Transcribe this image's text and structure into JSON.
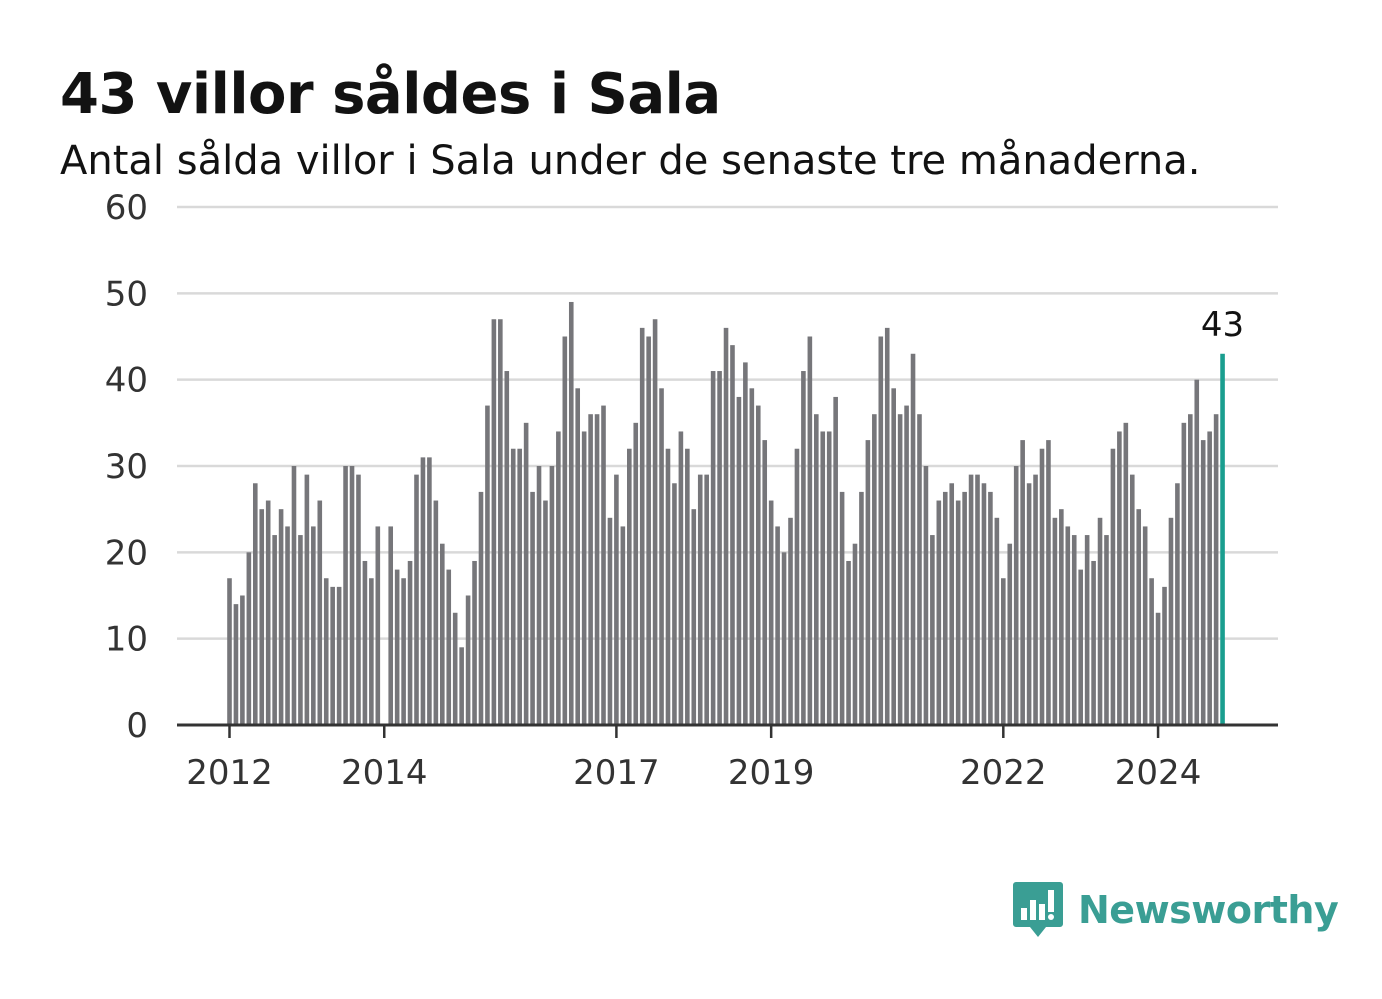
{
  "header": {
    "title": "43 villor såldes i Sala",
    "subtitle": "Antal sålda villor i Sala under de senaste tre månaderna."
  },
  "brand": {
    "name": "Newsworthy",
    "icon": "newsworthy-logo-icon",
    "color": "#3a9e94"
  },
  "colors": {
    "bar": "#76767a",
    "highlight": "#1a9e8f",
    "grid": "#d9d9d9",
    "axis": "#333333"
  },
  "chart_data": {
    "type": "bar",
    "title": "43 villor såldes i Sala",
    "subtitle": "Antal sålda villor i Sala under de senaste tre månaderna.",
    "xlabel": "",
    "ylabel": "",
    "ylim": [
      0,
      60
    ],
    "yticks": [
      0,
      10,
      20,
      30,
      40,
      50,
      60
    ],
    "xticks": [
      "2012",
      "2014",
      "2017",
      "2019",
      "2022",
      "2024"
    ],
    "grid": true,
    "highlight_last": true,
    "last_label": "43",
    "values": [
      17,
      14,
      15,
      20,
      28,
      25,
      26,
      22,
      25,
      23,
      30,
      22,
      29,
      23,
      26,
      17,
      16,
      16,
      30,
      30,
      29,
      19,
      17,
      23,
      0,
      23,
      18,
      17,
      19,
      29,
      31,
      31,
      26,
      21,
      18,
      13,
      9,
      15,
      19,
      27,
      37,
      47,
      47,
      41,
      32,
      32,
      35,
      27,
      30,
      26,
      30,
      34,
      45,
      49,
      39,
      34,
      36,
      36,
      37,
      24,
      29,
      23,
      32,
      35,
      46,
      45,
      47,
      39,
      32,
      28,
      34,
      32,
      25,
      29,
      29,
      41,
      41,
      46,
      44,
      38,
      42,
      39,
      37,
      33,
      26,
      23,
      20,
      24,
      32,
      41,
      45,
      36,
      34,
      34,
      38,
      27,
      19,
      21,
      27,
      33,
      36,
      45,
      46,
      39,
      36,
      37,
      43,
      36,
      30,
      22,
      26,
      27,
      28,
      26,
      27,
      29,
      29,
      28,
      27,
      24,
      17,
      21,
      30,
      33,
      28,
      29,
      32,
      33,
      24,
      25,
      23,
      22,
      18,
      22,
      19,
      24,
      22,
      32,
      34,
      35,
      29,
      25,
      23,
      17,
      13,
      16,
      24,
      28,
      35,
      36,
      40,
      33,
      34,
      36,
      43
    ]
  }
}
